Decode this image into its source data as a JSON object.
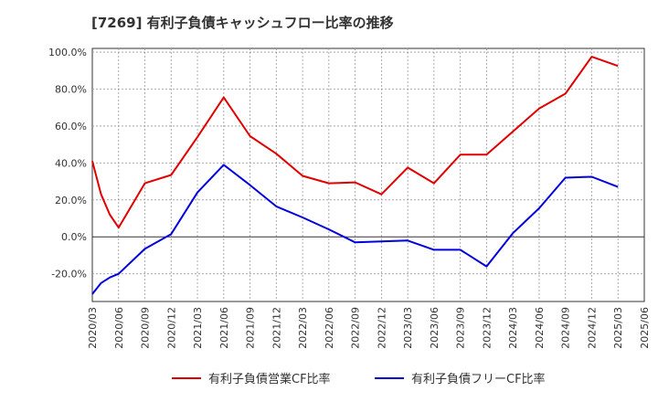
{
  "title": "[7269]  有利子負債キャッシュフロー比率の推移",
  "chart_data": {
    "type": "line",
    "title": "[7269]  有利子負債キャッシュフロー比率の推移",
    "xlabel": "",
    "ylabel": "",
    "ylim": [
      -35,
      102
    ],
    "yticks": [
      100,
      80,
      60,
      40,
      20,
      0,
      -20
    ],
    "ytick_labels": [
      "100.0%",
      "80.0%",
      "60.0%",
      "40.0%",
      "20.0%",
      "0.0%",
      "-20.0%"
    ],
    "grid": true,
    "legend": "bottom",
    "x_start": "2020/03",
    "x_end": "2025/06",
    "xtick_labels": [
      "2020/03",
      "2020/06",
      "2020/09",
      "2020/12",
      "2021/03",
      "2021/06",
      "2021/09",
      "2021/12",
      "2022/03",
      "2022/06",
      "2022/09",
      "2022/12",
      "2023/03",
      "2023/06",
      "2023/09",
      "2023/12",
      "2024/03",
      "2024/06",
      "2024/09",
      "2024/12",
      "2025/03",
      "2025/06"
    ],
    "series": [
      {
        "name": "有利子負債営業CF比率",
        "color": "#e00000",
        "x": [
          "2020/03",
          "2020/04",
          "2020/05",
          "2020/06",
          "2020/09",
          "2020/12",
          "2021/03",
          "2021/06",
          "2021/09",
          "2021/12",
          "2022/03",
          "2022/06",
          "2022/09",
          "2022/12",
          "2023/03",
          "2023/06",
          "2023/09",
          "2023/12",
          "2024/03",
          "2024/06",
          "2024/09",
          "2024/12",
          "2025/03"
        ],
        "values": [
          41,
          23,
          12,
          5,
          29,
          33.5,
          54,
          75.5,
          54.5,
          45,
          33,
          29,
          29.5,
          23,
          37.5,
          29,
          44.5,
          44.5,
          57,
          69.5,
          77.5,
          97.5,
          92.5
        ]
      },
      {
        "name": "有利子負債フリーCF比率",
        "color": "#0000dd",
        "x": [
          "2020/03",
          "2020/04",
          "2020/05",
          "2020/06",
          "2020/09",
          "2020/12",
          "2021/03",
          "2021/06",
          "2021/09",
          "2021/12",
          "2022/03",
          "2022/06",
          "2022/09",
          "2022/12",
          "2023/03",
          "2023/06",
          "2023/09",
          "2023/12",
          "2024/03",
          "2024/06",
          "2024/09",
          "2024/12",
          "2025/03"
        ],
        "values": [
          -31,
          -25,
          -22,
          -20,
          -6.5,
          1.5,
          24,
          39,
          28,
          16.5,
          10.5,
          4,
          -3,
          -2.5,
          -2,
          -7,
          -7,
          -16,
          2,
          15.5,
          32,
          32.5,
          27
        ]
      }
    ]
  }
}
